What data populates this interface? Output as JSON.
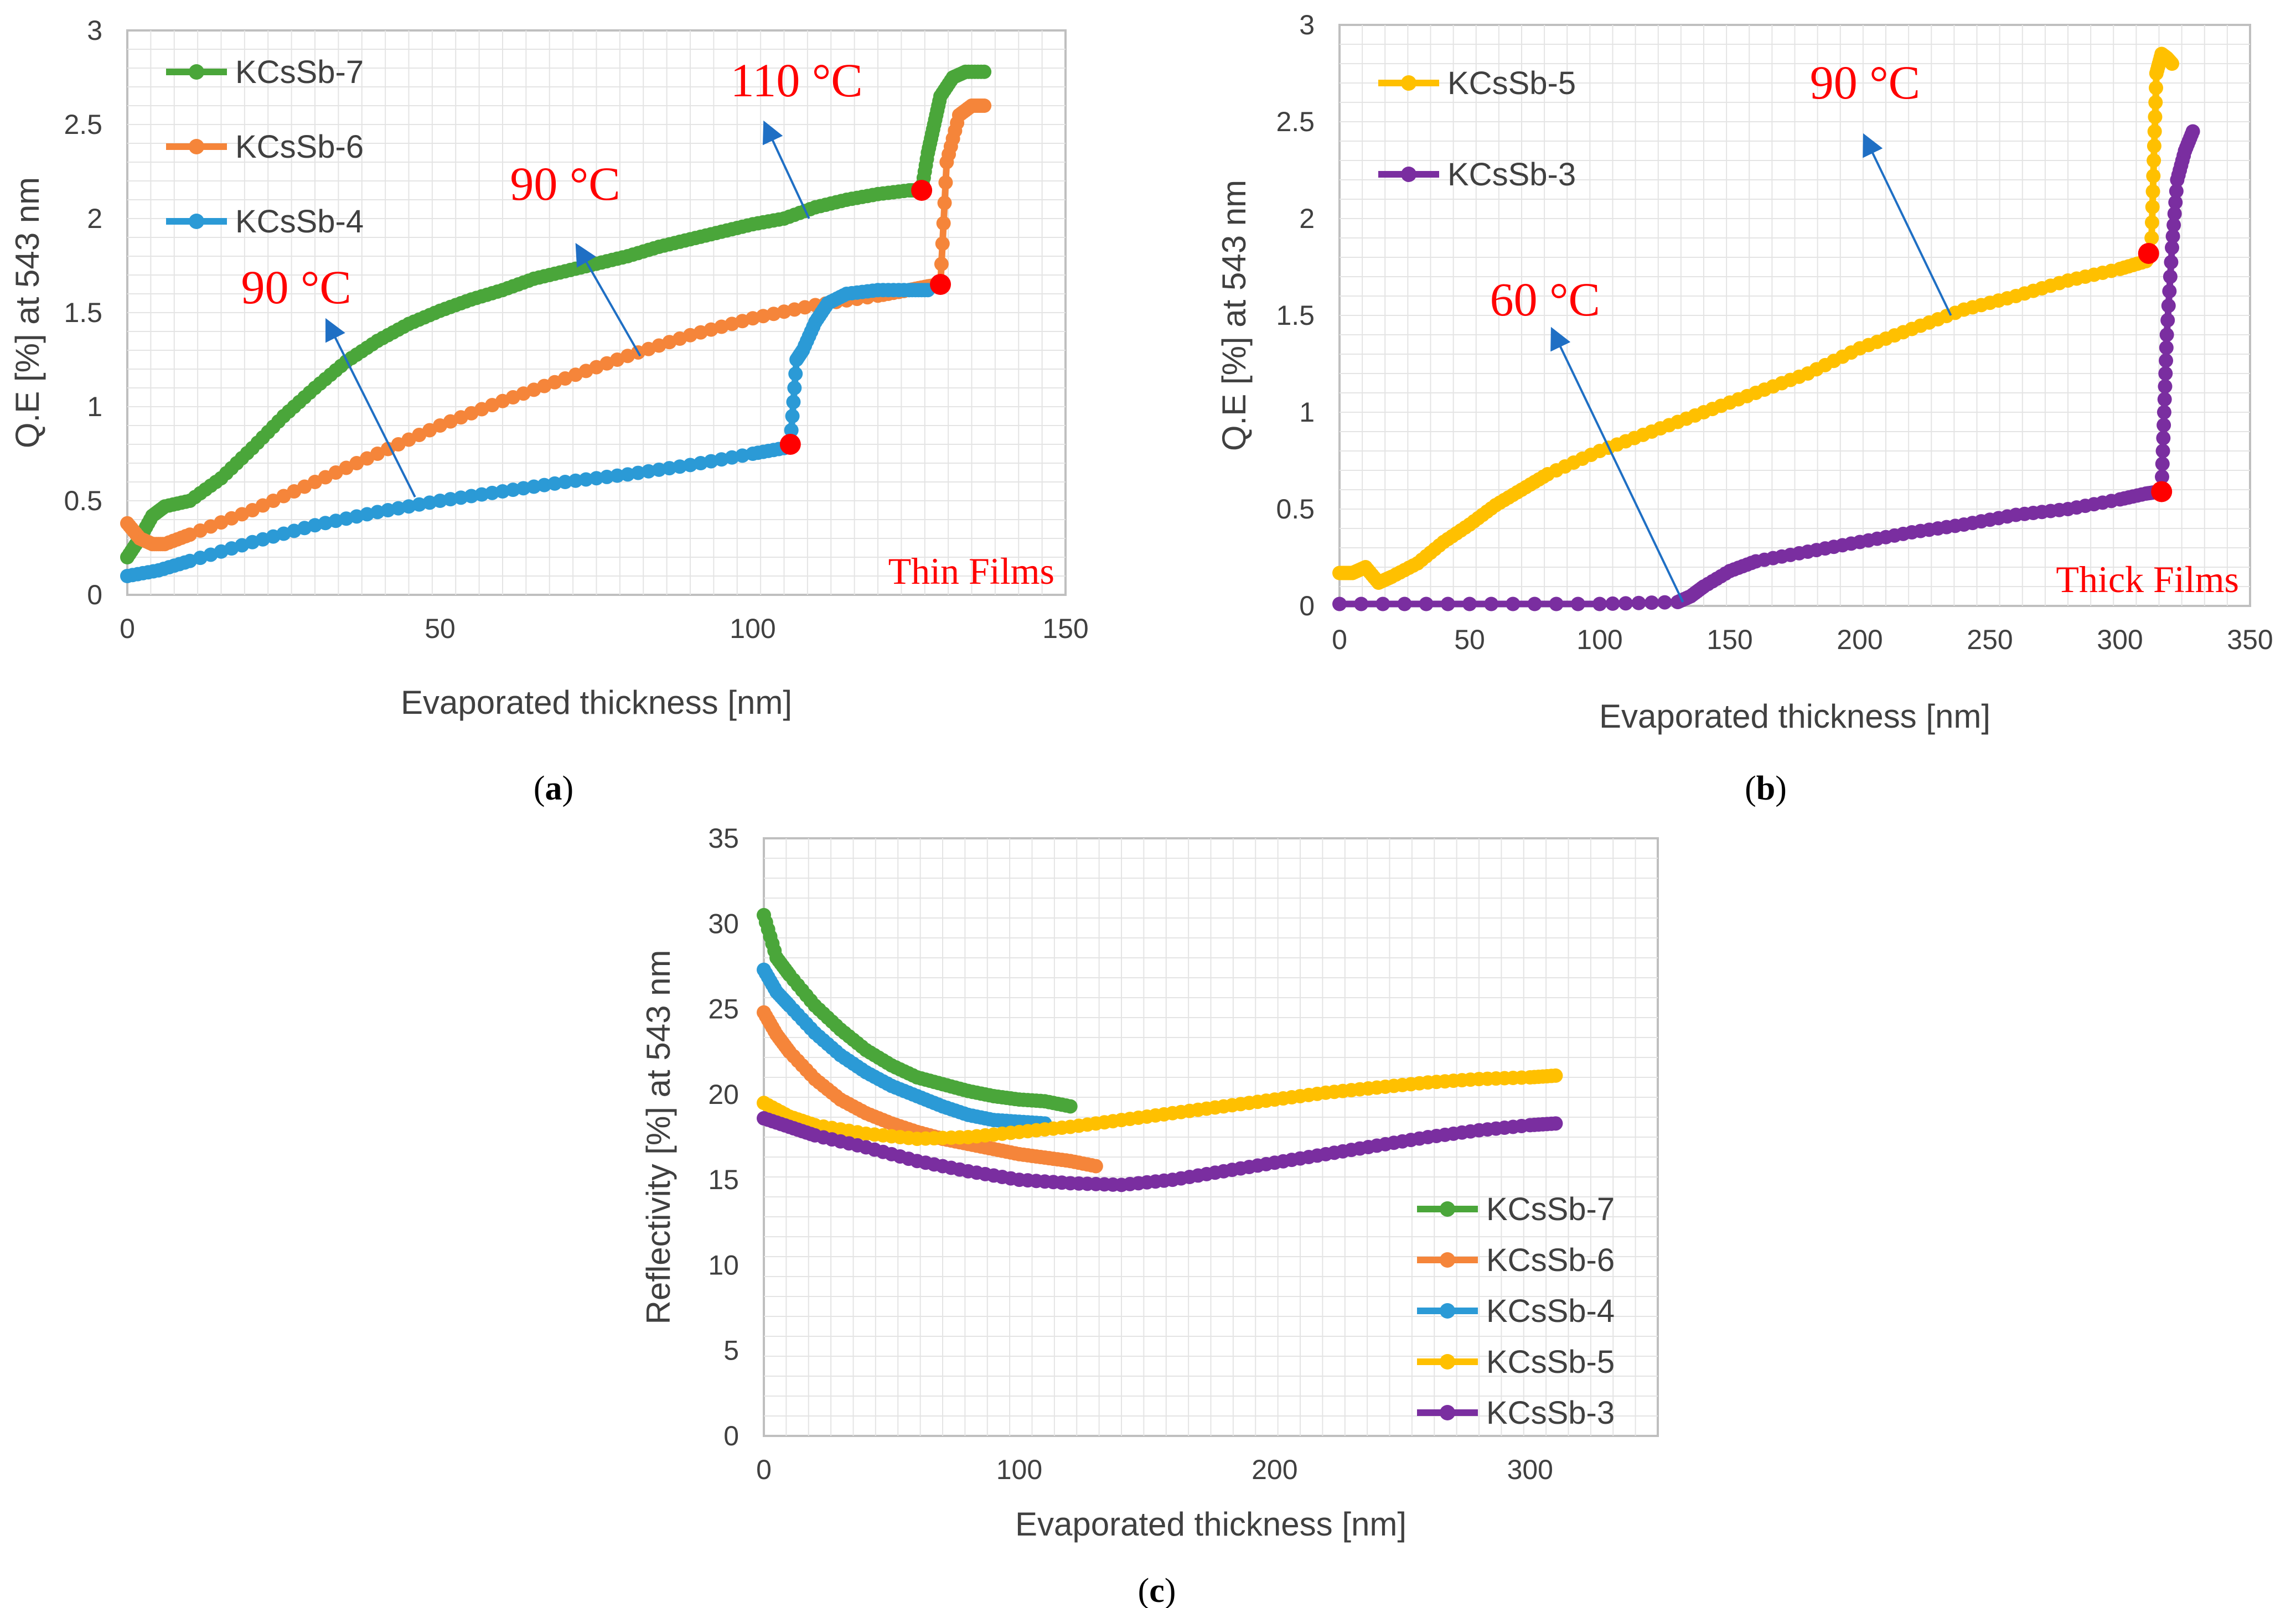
{
  "figure": {
    "captions": [
      {
        "open": "(",
        "letter": "a",
        "close": ")"
      },
      {
        "open": "(",
        "letter": "b",
        "close": ")"
      },
      {
        "open": "(",
        "letter": "c",
        "close": ")"
      }
    ]
  },
  "colors": {
    "KCsSb-7": "#4aa63a",
    "KCsSb-6": "#f5853a",
    "KCsSb-4": "#2b9ad6",
    "KCsSb-5": "#ffc000",
    "KCsSb-3": "#7a2ea0",
    "marker": "#ff0000",
    "arrow": "#1f6fc4",
    "axis": "#bfbfbf",
    "grid": "#e4e4e4"
  },
  "chart_data": [
    {
      "id": "a",
      "type": "line",
      "xlabel": "Evaporated thickness [nm]",
      "ylabel": "Q.E [%] at 543 nm",
      "xlim": [
        0,
        150
      ],
      "ylim": [
        0,
        3
      ],
      "xticks": [
        "0",
        "50",
        "100",
        "150"
      ],
      "yticks": [
        "0",
        "0.5",
        "1",
        "1.5",
        "2",
        "2.5",
        "3"
      ],
      "legend_position": "top-left",
      "film_label": "Thin Films",
      "series": [
        {
          "name": "KCsSb-7",
          "x": [
            0,
            2,
            4,
            6,
            10,
            15,
            20,
            25,
            30,
            35,
            40,
            45,
            50,
            55,
            60,
            65,
            70,
            75,
            80,
            85,
            90,
            95,
            100,
            105,
            110,
            115,
            120,
            125,
            127,
            128,
            129,
            130,
            132,
            134,
            137
          ],
          "y": [
            0.2,
            0.3,
            0.42,
            0.47,
            0.5,
            0.62,
            0.78,
            0.95,
            1.1,
            1.24,
            1.35,
            1.44,
            1.51,
            1.57,
            1.62,
            1.68,
            1.72,
            1.76,
            1.8,
            1.85,
            1.89,
            1.93,
            1.97,
            2.0,
            2.06,
            2.1,
            2.13,
            2.15,
            2.15,
            2.35,
            2.5,
            2.65,
            2.75,
            2.78,
            2.78
          ]
        },
        {
          "name": "KCsSb-6",
          "x": [
            0,
            2,
            4,
            6,
            10,
            20,
            30,
            40,
            50,
            60,
            70,
            80,
            90,
            100,
            110,
            120,
            125,
            128,
            130,
            131,
            133,
            135,
            137
          ],
          "y": [
            0.38,
            0.3,
            0.27,
            0.27,
            0.32,
            0.45,
            0.6,
            0.75,
            0.9,
            1.03,
            1.15,
            1.27,
            1.38,
            1.47,
            1.54,
            1.59,
            1.62,
            1.64,
            1.65,
            2.3,
            2.55,
            2.6,
            2.6
          ]
        },
        {
          "name": "KCsSb-4",
          "x": [
            0,
            5,
            10,
            20,
            30,
            40,
            50,
            60,
            70,
            80,
            90,
            100,
            105,
            106,
            107,
            108,
            110,
            112,
            115,
            120,
            125,
            128
          ],
          "y": [
            0.1,
            0.13,
            0.18,
            0.28,
            0.37,
            0.44,
            0.5,
            0.55,
            0.6,
            0.64,
            0.69,
            0.75,
            0.78,
            0.8,
            1.25,
            1.3,
            1.45,
            1.55,
            1.6,
            1.62,
            1.62,
            1.62
          ]
        }
      ],
      "markers": [
        {
          "x": 127,
          "y": 2.15
        },
        {
          "x": 130,
          "y": 1.65
        },
        {
          "x": 106,
          "y": 0.8
        }
      ],
      "annotations": [
        {
          "text": "110 °C",
          "tx": 107,
          "ty": 2.65,
          "ax1": 109,
          "ay1": 2.0,
          "ax2": 102,
          "ay2": 2.5
        },
        {
          "text": "90 °C",
          "tx": 70,
          "ty": 2.1,
          "ax1": 82,
          "ay1": 1.27,
          "ax2": 72,
          "ay2": 1.85
        },
        {
          "text": "90 °C",
          "tx": 27,
          "ty": 1.55,
          "ax1": 46,
          "ay1": 0.52,
          "ax2": 32,
          "ay2": 1.45
        }
      ]
    },
    {
      "id": "b",
      "type": "line",
      "xlabel": "Evaporated thickness [nm]",
      "ylabel": "Q.E [%] at 543 nm",
      "xlim": [
        0,
        350
      ],
      "ylim": [
        0,
        3
      ],
      "xticks": [
        "0",
        "50",
        "100",
        "150",
        "200",
        "250",
        "300",
        "350"
      ],
      "yticks": [
        "0",
        "0.5",
        "1",
        "1.5",
        "2",
        "2.5",
        "3"
      ],
      "legend_position": "top-left",
      "film_label": "Thick Films",
      "series": [
        {
          "name": "KCsSb-5",
          "x": [
            0,
            5,
            10,
            15,
            20,
            30,
            40,
            50,
            60,
            70,
            80,
            100,
            120,
            140,
            160,
            180,
            200,
            220,
            240,
            260,
            280,
            300,
            310,
            312,
            313,
            314,
            316,
            318,
            320
          ],
          "y": [
            0.17,
            0.17,
            0.2,
            0.12,
            0.15,
            0.22,
            0.33,
            0.42,
            0.52,
            0.6,
            0.68,
            0.8,
            0.9,
            1.0,
            1.1,
            1.2,
            1.33,
            1.43,
            1.53,
            1.6,
            1.68,
            1.74,
            1.78,
            1.82,
            2.3,
            2.75,
            2.85,
            2.83,
            2.8
          ]
        },
        {
          "name": "KCsSb-3",
          "x": [
            0,
            50,
            100,
            130,
            135,
            140,
            150,
            160,
            180,
            200,
            220,
            240,
            260,
            280,
            300,
            310,
            315,
            316,
            317,
            318,
            320,
            322,
            325,
            328
          ],
          "y": [
            0.01,
            0.01,
            0.01,
            0.02,
            0.05,
            0.1,
            0.18,
            0.23,
            0.28,
            0.33,
            0.38,
            0.42,
            0.47,
            0.5,
            0.55,
            0.58,
            0.59,
            0.6,
            1.0,
            1.4,
            1.85,
            2.2,
            2.35,
            2.45
          ]
        }
      ],
      "markers": [
        {
          "x": 311,
          "y": 1.82
        },
        {
          "x": 316,
          "y": 0.59
        }
      ],
      "annotations": [
        {
          "text": "90 °C",
          "tx": 202,
          "ty": 2.62,
          "ax1": 235,
          "ay1": 1.5,
          "ax2": 202,
          "ay2": 2.42
        },
        {
          "text": "60 °C",
          "tx": 79,
          "ty": 1.5,
          "ax1": 132,
          "ay1": 0.02,
          "ax2": 82,
          "ay2": 1.42
        }
      ]
    },
    {
      "id": "c",
      "type": "line",
      "xlabel": "Evaporated thickness [nm]",
      "ylabel": "Reflectivity [%] at 543 nm",
      "xlim": [
        0,
        350
      ],
      "ylim": [
        0,
        35
      ],
      "xticks": [
        "0",
        "100",
        "200",
        "300"
      ],
      "yticks": [
        "0",
        "5",
        "10",
        "15",
        "20",
        "25",
        "30",
        "35"
      ],
      "legend_position": "bottom-right",
      "series": [
        {
          "name": "KCsSb-7",
          "x": [
            0,
            5,
            10,
            20,
            30,
            40,
            50,
            60,
            70,
            80,
            90,
            100,
            110,
            120
          ],
          "y": [
            30.5,
            28,
            27,
            25.2,
            23.8,
            22.6,
            21.7,
            21,
            20.6,
            20.2,
            19.9,
            19.7,
            19.6,
            19.3
          ]
        },
        {
          "name": "KCsSb-6",
          "x": [
            0,
            5,
            10,
            20,
            30,
            40,
            50,
            60,
            70,
            80,
            90,
            100,
            110,
            120,
            130
          ],
          "y": [
            24.8,
            23.5,
            22.5,
            20.9,
            19.7,
            18.9,
            18.3,
            17.8,
            17.4,
            17.1,
            16.8,
            16.5,
            16.3,
            16.1,
            15.8
          ]
        },
        {
          "name": "KCsSb-4",
          "x": [
            0,
            5,
            10,
            20,
            30,
            40,
            50,
            60,
            70,
            80,
            90,
            100,
            110
          ],
          "y": [
            27.3,
            26,
            25.2,
            23.6,
            22.3,
            21.3,
            20.5,
            19.9,
            19.3,
            18.8,
            18.5,
            18.4,
            18.3
          ]
        },
        {
          "name": "KCsSb-5",
          "x": [
            0,
            10,
            20,
            40,
            60,
            80,
            100,
            120,
            140,
            160,
            180,
            200,
            220,
            240,
            260,
            280,
            300,
            310
          ],
          "y": [
            19.5,
            18.7,
            18.2,
            17.7,
            17.4,
            17.5,
            17.8,
            18.1,
            18.5,
            18.9,
            19.3,
            19.7,
            20.1,
            20.4,
            20.7,
            20.9,
            21.0,
            21.1
          ]
        },
        {
          "name": "KCsSb-3",
          "x": [
            0,
            10,
            20,
            40,
            60,
            80,
            100,
            120,
            140,
            160,
            180,
            200,
            220,
            240,
            260,
            280,
            300,
            310
          ],
          "y": [
            18.6,
            18.1,
            17.6,
            16.9,
            16.1,
            15.5,
            15.0,
            14.8,
            14.7,
            15.0,
            15.5,
            16.0,
            16.5,
            17.0,
            17.5,
            17.9,
            18.2,
            18.3
          ]
        }
      ]
    }
  ]
}
